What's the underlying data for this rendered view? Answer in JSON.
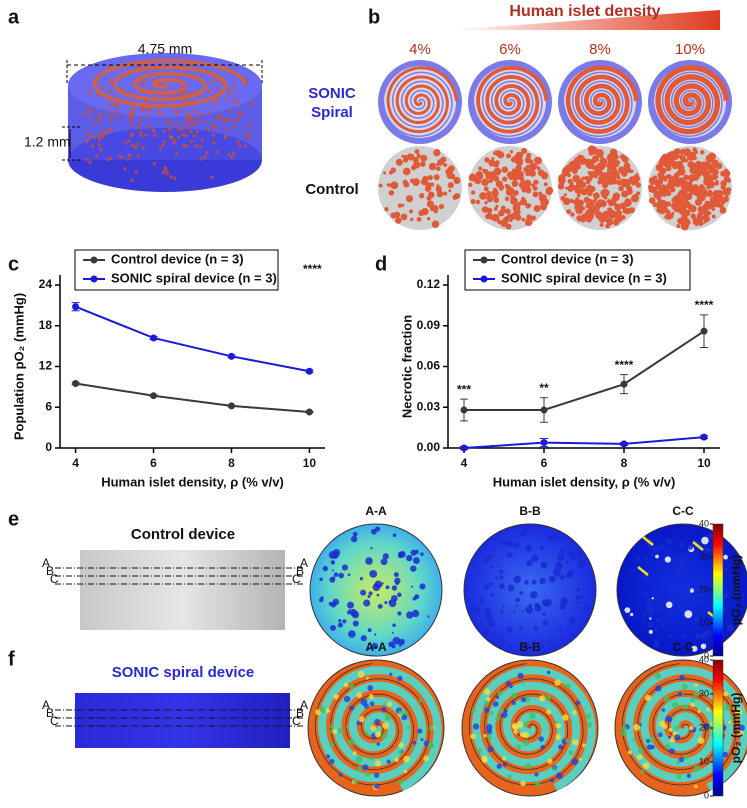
{
  "chart_data": [
    {
      "type": "line",
      "x": [
        4,
        6,
        8,
        10
      ],
      "xlim": [
        3.6,
        10.4
      ],
      "xticks": [
        4,
        6,
        8,
        10
      ],
      "ylim": [
        0,
        24
      ],
      "yticks": [
        0,
        6,
        12,
        18,
        24
      ],
      "y_label": "Population pO₂ (mmHg)",
      "x_label": "Human islet density, ρ (% v/v)",
      "series": [
        {
          "name": "Control device (n = 3)",
          "color": "#3a3a3a",
          "values": [
            9.5,
            7.7,
            6.2,
            5.3
          ],
          "errors": [
            0.2,
            0.1,
            0.1,
            0.1
          ]
        },
        {
          "name": "SONIC spiral device (n = 3)",
          "color": "#1a1adc",
          "values": [
            20.8,
            16.2,
            13.5,
            11.3
          ],
          "errors": [
            0.6,
            0.2,
            0.2,
            0.2
          ]
        }
      ],
      "annotation": "****"
    },
    {
      "type": "line",
      "x": [
        4,
        6,
        8,
        10
      ],
      "xlim": [
        3.6,
        10.4
      ],
      "xticks": [
        4,
        6,
        8,
        10
      ],
      "ylim": [
        0,
        0.12
      ],
      "yticks": [
        {
          "value": 0,
          "label": "0.00"
        },
        {
          "value": 0.03,
          "label": "0.03"
        },
        {
          "value": 0.06,
          "label": "0.06"
        },
        {
          "value": 0.09,
          "label": "0.09"
        },
        {
          "value": 0.12,
          "label": "0.12"
        }
      ],
      "y_label": "Necrotic fraction",
      "x_label": "Human islet density, ρ (% v/v)",
      "series": [
        {
          "name": "Control device (n = 3)",
          "color": "#3a3a3a",
          "values": [
            0.028,
            0.028,
            0.047,
            0.086
          ],
          "errors": [
            0.008,
            0.009,
            0.007,
            0.012
          ]
        },
        {
          "name": "SONIC spiral device (n = 3)",
          "color": "#1a1adc",
          "values": [
            0.0,
            0.004,
            0.003,
            0.008
          ],
          "errors": [
            0.001,
            0.003,
            0.001,
            0.001
          ]
        }
      ],
      "significance": [
        "***",
        "**",
        "****",
        "****"
      ]
    }
  ],
  "panels": {
    "labels": [
      "a",
      "b",
      "c",
      "d",
      "e",
      "f"
    ],
    "a": {
      "diameter": "4.75 mm",
      "height": "1.2 mm"
    },
    "b": {
      "title": "Human islet density",
      "densities": [
        "4%",
        "6%",
        "8%",
        "10%"
      ],
      "rows": [
        "SONIC Spiral",
        "Control"
      ]
    },
    "e": {
      "title": "Control device",
      "sections": [
        "A",
        "B",
        "C"
      ],
      "views": [
        "A-A",
        "B-B",
        "C-C"
      ],
      "colorbar": {
        "ticks": [
          0,
          10,
          20,
          30,
          40
        ],
        "label": "pO₂ (mmHg)"
      }
    },
    "f": {
      "title": "SONIC spiral device",
      "sections": [
        "A",
        "B",
        "C"
      ],
      "views": [
        "A-A",
        "B-B",
        "C-C"
      ],
      "colorbar": {
        "ticks": [
          0,
          10,
          20,
          30,
          40
        ],
        "label": "pO₂ (mmHg)"
      }
    }
  }
}
